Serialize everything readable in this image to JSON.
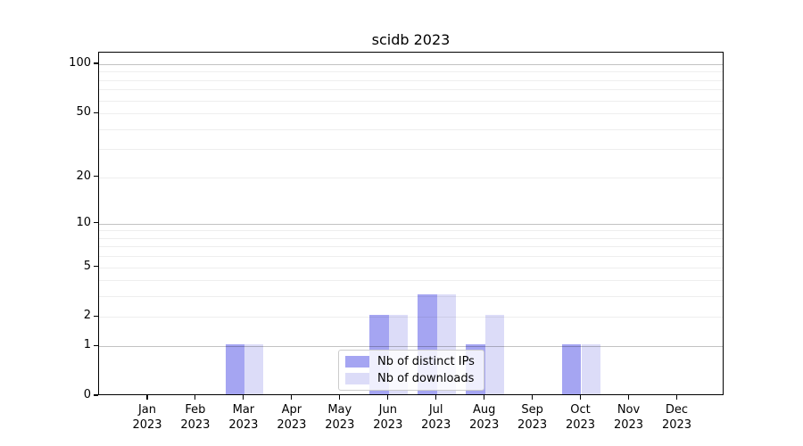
{
  "chart_data": {
    "type": "bar",
    "title": "scidb 2023",
    "xlabel": "",
    "ylabel": "",
    "yscale": "log1p",
    "ylim": [
      0,
      118
    ],
    "grid": "on",
    "legend_position": "lower center",
    "categories": [
      "Jan 2023",
      "Feb 2023",
      "Mar 2023",
      "Apr 2023",
      "May 2023",
      "Jun 2023",
      "Jul 2023",
      "Aug 2023",
      "Sep 2023",
      "Oct 2023",
      "Nov 2023",
      "Dec 2023"
    ],
    "series": [
      {
        "name": "Nb of distinct IPs",
        "color": "#a5a5f2",
        "values": [
          0,
          0,
          1,
          0,
          0,
          2,
          3,
          1,
          0,
          1,
          0,
          0
        ]
      },
      {
        "name": "Nb of downloads",
        "color": "#dcdcf8",
        "values": [
          0,
          0,
          1,
          0,
          0,
          2,
          3,
          2,
          0,
          1,
          0,
          0
        ]
      }
    ],
    "yticks": [
      0,
      1,
      2,
      5,
      10,
      20,
      50,
      100
    ],
    "gridlines_major": [
      1,
      10,
      100
    ],
    "gridlines_minor": [
      2,
      3,
      4,
      5,
      6,
      7,
      8,
      9,
      20,
      30,
      40,
      50,
      60,
      70,
      80,
      90
    ]
  },
  "colors": {
    "axis": "#000000",
    "legend_border": "#cccccc",
    "bar_distinct_ips": "#a5a5f2",
    "bar_downloads": "#dcdcf8"
  }
}
